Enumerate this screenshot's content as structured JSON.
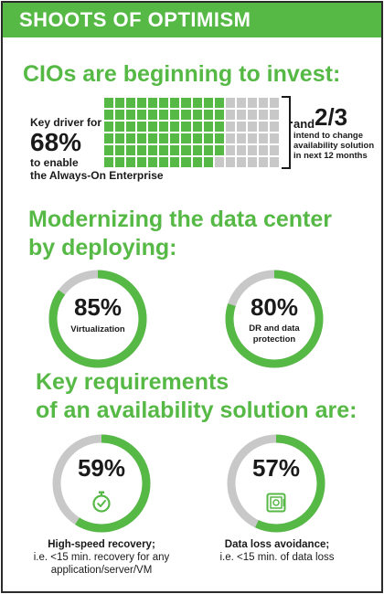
{
  "header": {
    "title": "SHOOTS OF OPTIMISM"
  },
  "invest": {
    "heading": "CIOs are beginning to invest:",
    "key_driver_label": "Key driver for",
    "percent": "68%",
    "to_enable": "to enable",
    "enterprise": "the Always-On Enterprise",
    "grid_filled_fraction": 0.68,
    "and_label": "and",
    "fraction": "2/3",
    "intend_line1": "intend to change",
    "intend_line2": "availability solution",
    "intend_line3": "in next 12 months"
  },
  "modernizing": {
    "heading_line1": "Modernizing the data center",
    "heading_line2": "by deploying:",
    "items": [
      {
        "value": "85%",
        "label_line1": "Virtualization",
        "label_line2": "",
        "percent": 85
      },
      {
        "value": "80%",
        "label_line1": "DR and data",
        "label_line2": "protection",
        "percent": 80
      }
    ]
  },
  "requirements": {
    "heading_line1": "Key requirements",
    "heading_line2": "of an availability solution are:",
    "items": [
      {
        "value": "59%",
        "icon": "stopwatch-icon",
        "percent": 59,
        "caption_bold": "High-speed recovery;",
        "caption_line2": "i.e. <15 min. recovery for any",
        "caption_line3": "application/server/VM"
      },
      {
        "value": "57%",
        "icon": "safe-icon",
        "percent": 57,
        "caption_bold": "Data loss avoidance;",
        "caption_line2": "i.e. <15 min. of data loss",
        "caption_line3": ""
      }
    ]
  },
  "colors": {
    "green": "#56b946",
    "gray": "#c8c8c8",
    "dark": "#1a1a1a"
  }
}
